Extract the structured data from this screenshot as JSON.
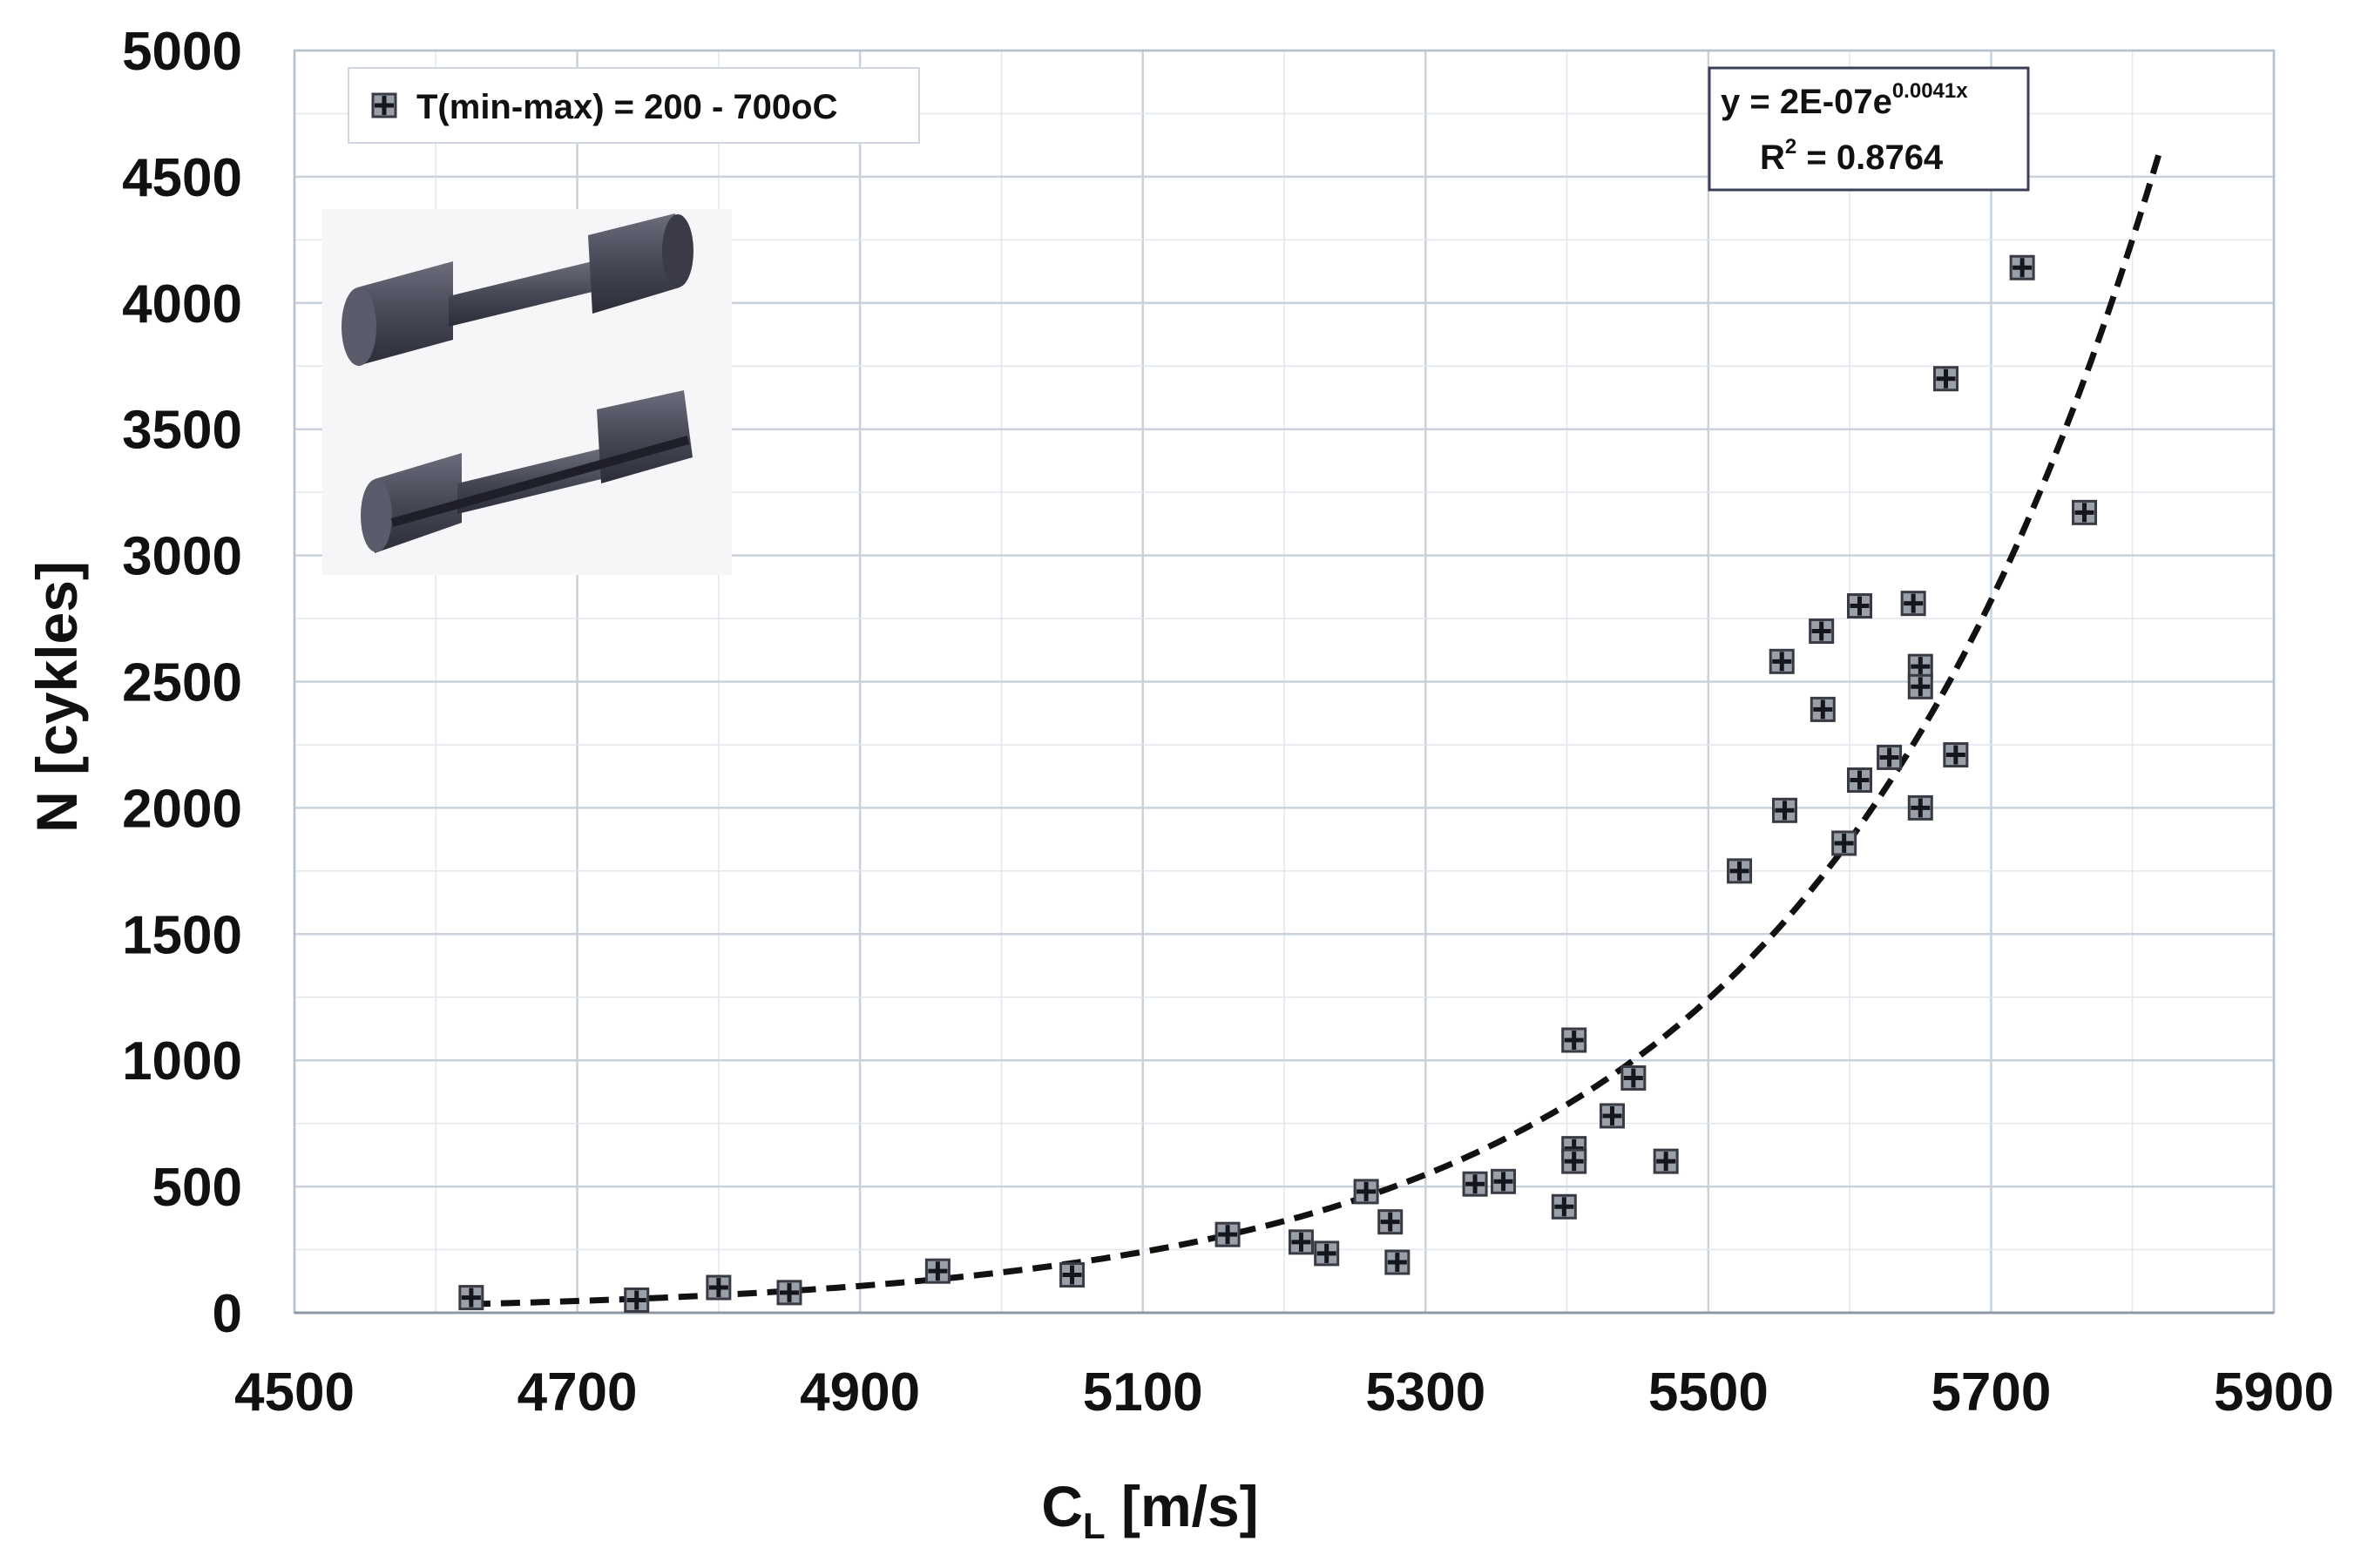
{
  "chart_data": {
    "type": "scatter",
    "xlabel_main": "C",
    "xlabel_sub": "L",
    "xlabel_unit": " [m/s]",
    "ylabel": "N [cykles]",
    "xlim": [
      4500,
      5900
    ],
    "ylim": [
      0,
      5000
    ],
    "x_ticks": [
      4500,
      4700,
      4900,
      5100,
      5300,
      5500,
      5700,
      5900
    ],
    "y_ticks": [
      0,
      500,
      1000,
      1500,
      2000,
      2500,
      3000,
      3500,
      4000,
      4500,
      5000
    ],
    "grid": true,
    "legend_position": "top-left",
    "series": [
      {
        "name": "T(min-max) = 200 - 700oC",
        "marker": "square-plus",
        "color": "#3a3a44",
        "points": [
          [
            4625,
            60
          ],
          [
            4742,
            50
          ],
          [
            4800,
            100
          ],
          [
            4850,
            80
          ],
          [
            4955,
            165
          ],
          [
            5050,
            150
          ],
          [
            5160,
            310
          ],
          [
            5212,
            280
          ],
          [
            5230,
            235
          ],
          [
            5258,
            480
          ],
          [
            5275,
            360
          ],
          [
            5280,
            200
          ],
          [
            5335,
            510
          ],
          [
            5355,
            520
          ],
          [
            5398,
            420
          ],
          [
            5405,
            1080
          ],
          [
            5405,
            650
          ],
          [
            5405,
            600
          ],
          [
            5432,
            780
          ],
          [
            5447,
            930
          ],
          [
            5470,
            600
          ],
          [
            5522,
            1750
          ],
          [
            5552,
            2580
          ],
          [
            5554,
            1990
          ],
          [
            5580,
            2700
          ],
          [
            5581,
            2390
          ],
          [
            5596,
            1860
          ],
          [
            5607,
            2800
          ],
          [
            5607,
            2110
          ],
          [
            5628,
            2200
          ],
          [
            5645,
            2810
          ],
          [
            5650,
            2560
          ],
          [
            5650,
            2480
          ],
          [
            5650,
            2000
          ],
          [
            5668,
            3700
          ],
          [
            5675,
            2210
          ],
          [
            5722,
            4140
          ],
          [
            5766,
            3170
          ]
        ]
      }
    ],
    "trendline": {
      "type": "exponential",
      "a": 2e-07,
      "b": 0.0041,
      "x_range": [
        4625,
        5820
      ],
      "style": "dashed",
      "color": "#111111",
      "equation_prefix": "y = 2E-07e",
      "equation_exponent": "0.0041x",
      "r2_prefix": "R",
      "r2_sup": "2",
      "r2_value": " = 0.8764",
      "equation_position": "top-right"
    }
  },
  "inset_image": {
    "icon": "specimen-3d-render-icon",
    "color": "#3c3e4c"
  }
}
